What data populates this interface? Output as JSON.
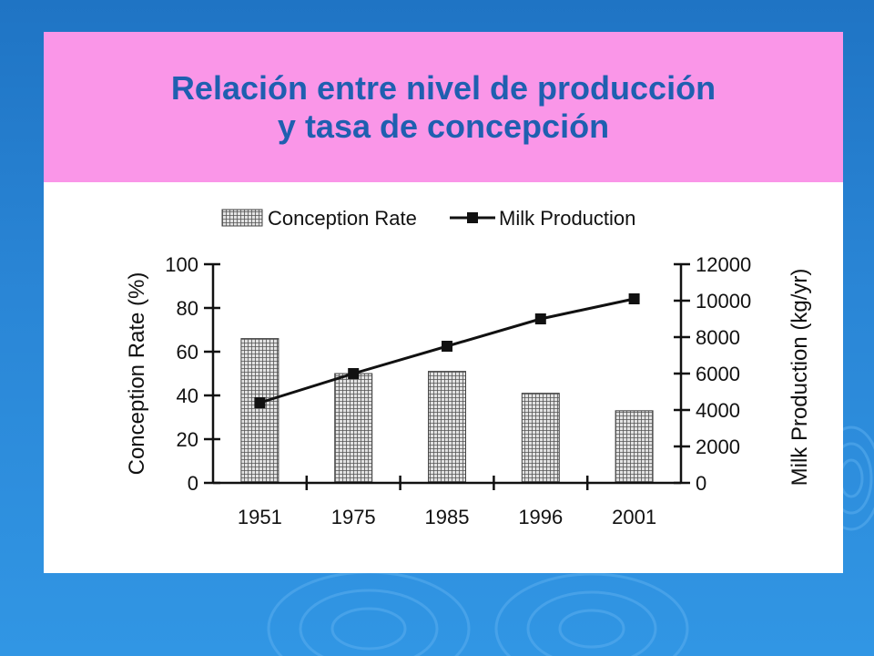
{
  "slide": {
    "title_line1": "Relación entre nivel de producción",
    "title_line2": "y tasa de concepción"
  },
  "colors": {
    "background": "#2a86d6",
    "title_band": "#fa96e8",
    "title_text": "#1f5fb0",
    "bar_fill": "#b8b8b8",
    "line": "#111111"
  },
  "chart_data": {
    "type": "bar",
    "categories": [
      "1951",
      "1975",
      "1985",
      "1996",
      "2001"
    ],
    "series": [
      {
        "name": "Conception Rate",
        "type": "bar",
        "axis": "left",
        "values": [
          66,
          50,
          51,
          41,
          33
        ]
      },
      {
        "name": "Milk Production",
        "type": "line",
        "axis": "right",
        "values": [
          4400,
          6000,
          7500,
          9000,
          10100
        ]
      }
    ],
    "ylabel": "Conception Rate (%)",
    "ylabel_right": "Milk Production (kg/yr)",
    "ylim": [
      0,
      100
    ],
    "ylim_right": [
      0,
      12000
    ],
    "yticks": [
      0,
      20,
      40,
      60,
      80,
      100
    ],
    "yticks_right": [
      0,
      2000,
      4000,
      6000,
      8000,
      10000,
      12000
    ],
    "legend_position": "top",
    "grid": false
  }
}
